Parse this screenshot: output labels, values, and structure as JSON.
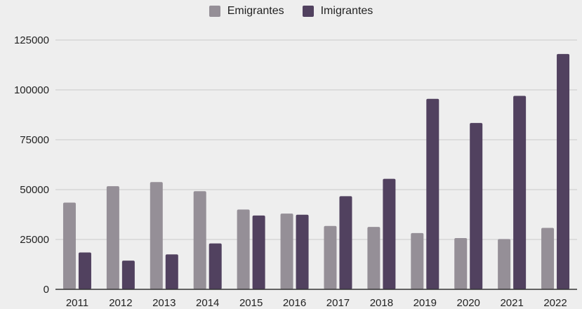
{
  "colors": {
    "background": "#eeeeee",
    "grid": "#c9c9c9",
    "axis": "#333333"
  },
  "chart_data": {
    "type": "bar",
    "title": "",
    "xlabel": "",
    "ylabel": "",
    "legend_position": "top-center",
    "grid": true,
    "ylim": [
      0,
      125000
    ],
    "yticks": [
      "0",
      "25000",
      "50000",
      "75000",
      "100000",
      "125000"
    ],
    "categories": [
      "2011",
      "2012",
      "2013",
      "2014",
      "2015",
      "2016",
      "2017",
      "2018",
      "2019",
      "2020",
      "2021",
      "2022"
    ],
    "series": [
      {
        "name": "Emigrantes",
        "color": "#958f97",
        "values": [
          43500,
          51700,
          53800,
          49200,
          40000,
          38000,
          31800,
          31300,
          28200,
          25700,
          25200,
          30800
        ]
      },
      {
        "name": "Imigrantes",
        "color": "#51415f",
        "values": [
          18500,
          14400,
          17500,
          23000,
          37000,
          37400,
          46700,
          55400,
          95500,
          83400,
          97000,
          118000
        ]
      }
    ]
  }
}
